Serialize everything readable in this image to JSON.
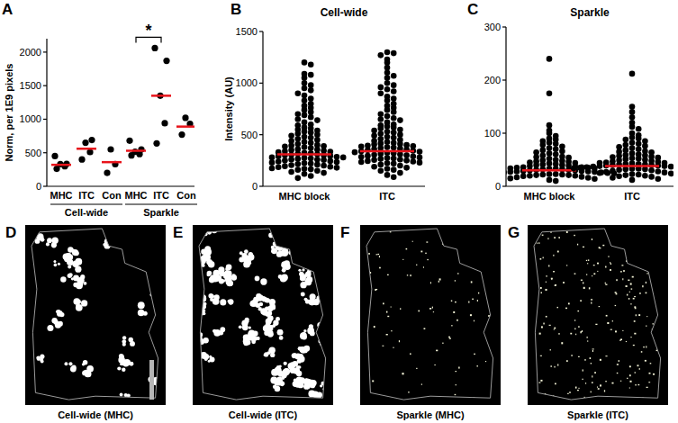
{
  "chart_data": [
    {
      "panel": "A",
      "type": "scatter",
      "ylabel": "Norm, per 1E9 pixels",
      "ylim": [
        0,
        2200
      ],
      "yticks": [
        0,
        500,
        1000,
        1500,
        2000
      ],
      "color": "#000000",
      "groups": [
        {
          "label": "Cell-wide",
          "categories": [
            "MHC",
            "ITC",
            "Con"
          ],
          "values": [
            [
              260,
              300,
              330,
              335,
              450
            ],
            [
              400,
              510,
              650,
              690
            ],
            [
              200,
              330,
              550
            ]
          ],
          "means": [
            320,
            560,
            360
          ]
        },
        {
          "label": "Sparkle",
          "categories": [
            "MHC",
            "ITC",
            "Con"
          ],
          "values": [
            [
              460,
              480,
              515,
              550,
              680
            ],
            [
              640,
              940,
              1350,
              1870,
              2060
            ],
            [
              770,
              930,
              1020
            ]
          ],
          "means": [
            530,
            1350,
            890
          ]
        }
      ],
      "annotations": [
        {
          "text": "*",
          "group": "Sparkle",
          "between": [
            "MHC",
            "ITC"
          ]
        }
      ]
    },
    {
      "panel": "B",
      "type": "scatter",
      "title": "Cell-wide",
      "ylabel": "Intensity (AU)",
      "ylim": [
        0,
        1500
      ],
      "yticks": [
        0,
        500,
        1000,
        1500
      ],
      "color": "#000000",
      "categories": [
        "MHC block",
        "ITC"
      ],
      "values": [
        [
          1200,
          1180,
          1090,
          1080,
          1050,
          1000,
          980,
          950,
          930,
          900,
          880,
          850,
          830,
          800,
          780,
          760,
          740,
          720,
          700,
          690,
          670,
          650,
          640,
          620,
          600,
          590,
          570,
          560,
          550,
          540,
          530,
          520,
          510,
          500,
          490,
          480,
          470,
          460,
          450,
          440,
          430,
          420,
          410,
          400,
          395,
          390,
          385,
          380,
          370,
          360,
          355,
          350,
          345,
          340,
          335,
          330,
          325,
          320,
          315,
          310,
          305,
          300,
          300,
          295,
          290,
          285,
          280,
          280,
          275,
          270,
          265,
          260,
          260,
          255,
          250,
          245,
          240,
          235,
          230,
          225,
          220,
          215,
          210,
          205,
          200,
          195,
          190,
          185,
          180,
          175,
          170,
          165,
          160,
          150,
          140,
          130,
          120,
          100,
          80
        ],
        [
          1300,
          1290,
          1270,
          1230,
          1200,
          1150,
          1100,
          1070,
          1050,
          1000,
          980,
          960,
          940,
          920,
          900,
          870,
          850,
          830,
          800,
          780,
          760,
          740,
          720,
          700,
          680,
          660,
          650,
          640,
          620,
          600,
          590,
          580,
          570,
          560,
          550,
          540,
          530,
          520,
          510,
          500,
          490,
          480,
          470,
          460,
          450,
          440,
          430,
          420,
          415,
          410,
          405,
          400,
          395,
          390,
          385,
          380,
          375,
          370,
          365,
          360,
          355,
          350,
          345,
          340,
          335,
          330,
          325,
          320,
          315,
          310,
          305,
          300,
          295,
          290,
          285,
          280,
          275,
          270,
          265,
          260,
          255,
          250,
          245,
          240,
          235,
          230,
          225,
          220,
          210,
          200,
          190,
          180,
          170,
          160,
          150,
          130,
          110,
          90
        ]
      ],
      "medians": [
        310,
        340
      ]
    },
    {
      "panel": "C",
      "type": "scatter",
      "title": "Sparkle",
      "ylim": [
        0,
        300
      ],
      "yticks": [
        0,
        100,
        200,
        300
      ],
      "color": "#000000",
      "categories": [
        "MHC block",
        "ITC"
      ],
      "values": [
        [
          240,
          175,
          115,
          105,
          100,
          95,
          90,
          88,
          85,
          82,
          80,
          78,
          75,
          72,
          70,
          68,
          66,
          64,
          62,
          60,
          58,
          56,
          55,
          54,
          52,
          50,
          49,
          48,
          47,
          46,
          45,
          44,
          43,
          42,
          41,
          40,
          40,
          39,
          38,
          37,
          36,
          36,
          35,
          35,
          34,
          34,
          33,
          33,
          32,
          32,
          31,
          31,
          30,
          30,
          29,
          29,
          28,
          28,
          27,
          27,
          26,
          26,
          25,
          25,
          24,
          24,
          23,
          23,
          22,
          22,
          21,
          21,
          20,
          20,
          19,
          18,
          17,
          16,
          15,
          14,
          12,
          10
        ],
        [
          212,
          150,
          140,
          130,
          120,
          112,
          108,
          100,
          96,
          92,
          90,
          88,
          85,
          82,
          80,
          78,
          76,
          74,
          72,
          70,
          68,
          66,
          65,
          64,
          62,
          60,
          59,
          58,
          57,
          56,
          55,
          54,
          53,
          52,
          51,
          50,
          49,
          48,
          47,
          46,
          45,
          44,
          44,
          43,
          42,
          42,
          41,
          41,
          40,
          40,
          39,
          39,
          38,
          38,
          37,
          37,
          36,
          36,
          35,
          35,
          34,
          34,
          33,
          33,
          32,
          32,
          31,
          30,
          29,
          28,
          27,
          26,
          25,
          24,
          23,
          22,
          21,
          20,
          19,
          18,
          16,
          14,
          12
        ]
      ],
      "medians": [
        30,
        38
      ]
    }
  ],
  "images": [
    {
      "panel": "D",
      "caption": "Cell-wide (MHC)"
    },
    {
      "panel": "E",
      "caption": "Cell-wide (ITC)"
    },
    {
      "panel": "F",
      "caption": "Sparkle (MHC)"
    },
    {
      "panel": "G",
      "caption": "Sparkle (ITC)"
    }
  ]
}
